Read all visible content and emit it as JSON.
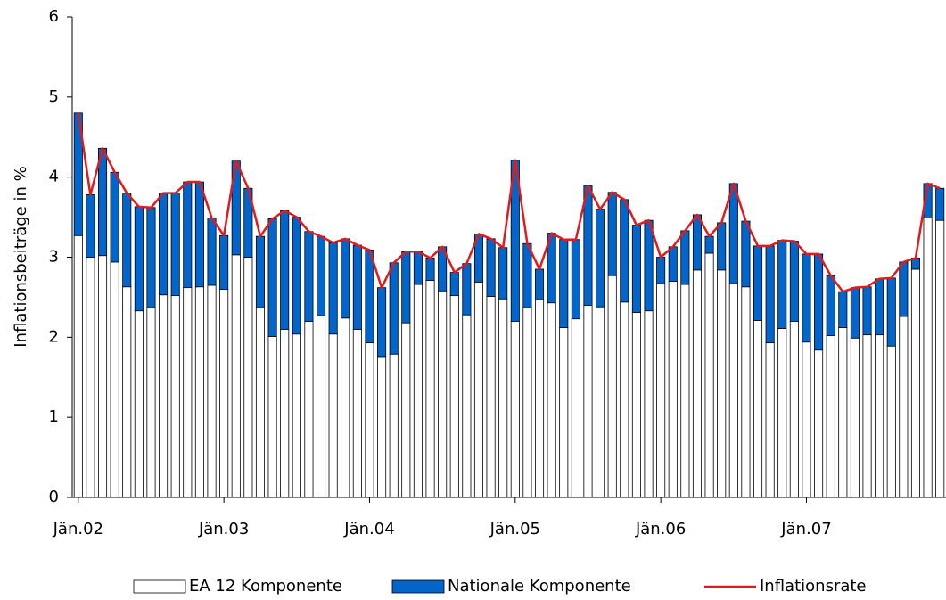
{
  "chart_data": {
    "type": "bar",
    "stacked": true,
    "ylabel": "Inflationsbeiträge in %",
    "categories": [
      "Jän.02",
      null,
      null,
      null,
      null,
      null,
      null,
      null,
      null,
      null,
      null,
      null,
      "Jän.03",
      null,
      null,
      null,
      null,
      null,
      null,
      null,
      null,
      null,
      null,
      null,
      "Jän.04",
      null,
      null,
      null,
      null,
      null,
      null,
      null,
      null,
      null,
      null,
      null,
      "Jän.05",
      null,
      null,
      null,
      null,
      null,
      null,
      null,
      null,
      null,
      null,
      null,
      "Jän.06",
      null,
      null,
      null,
      null,
      null,
      null,
      null,
      null,
      null,
      null,
      null,
      "Jän.07",
      null,
      null,
      null,
      null,
      null,
      null,
      null,
      null,
      null,
      null,
      null
    ],
    "ylim": [
      0,
      6
    ],
    "yticks": [
      0,
      1,
      2,
      3,
      4,
      5,
      6
    ],
    "series": [
      {
        "name": "EA 12 Komponente",
        "type": "bar",
        "color": "#ffffff",
        "values": [
          3.27,
          3.0,
          3.02,
          2.94,
          2.63,
          2.33,
          2.37,
          2.53,
          2.52,
          2.62,
          2.63,
          2.65,
          2.6,
          3.03,
          3.0,
          2.37,
          2.01,
          2.1,
          2.04,
          2.2,
          2.27,
          2.04,
          2.24,
          2.1,
          1.93,
          1.76,
          1.79,
          2.18,
          2.66,
          2.71,
          2.58,
          2.52,
          2.28,
          2.69,
          2.51,
          2.48,
          2.2,
          2.37,
          2.47,
          2.43,
          2.12,
          2.23,
          2.4,
          2.38,
          2.77,
          2.44,
          2.31,
          2.33,
          2.67,
          2.7,
          2.66,
          2.84,
          3.05,
          2.84,
          2.67,
          2.63,
          2.21,
          1.93,
          2.11,
          2.2,
          1.94,
          1.84,
          2.02,
          2.12,
          1.99,
          2.03,
          2.03,
          1.89,
          2.26,
          2.85,
          3.49,
          3.46
        ]
      },
      {
        "name": "Nationale Komponente",
        "type": "bar",
        "color": "#0066cc",
        "values": [
          1.53,
          0.78,
          1.34,
          1.12,
          1.17,
          1.3,
          1.25,
          1.27,
          1.28,
          1.32,
          1.31,
          0.84,
          0.67,
          1.17,
          0.86,
          0.89,
          1.47,
          1.48,
          1.46,
          1.12,
          0.99,
          1.14,
          0.99,
          1.05,
          1.16,
          0.86,
          1.14,
          0.89,
          0.41,
          0.28,
          0.55,
          0.29,
          0.64,
          0.6,
          0.72,
          0.64,
          2.01,
          0.8,
          0.38,
          0.87,
          1.1,
          0.99,
          1.49,
          1.22,
          1.04,
          1.28,
          1.09,
          1.13,
          0.33,
          0.43,
          0.67,
          0.69,
          0.21,
          0.59,
          1.25,
          0.82,
          0.93,
          1.21,
          1.1,
          1.0,
          1.1,
          1.2,
          0.75,
          0.45,
          0.63,
          0.6,
          0.7,
          0.85,
          0.68,
          0.14,
          0.43,
          0.4
        ]
      },
      {
        "name": "Inflationsrate",
        "type": "line",
        "color": "#e31a1c",
        "values": [
          4.8,
          3.78,
          4.36,
          4.06,
          3.8,
          3.63,
          3.62,
          3.8,
          3.8,
          3.94,
          3.94,
          3.49,
          3.27,
          4.2,
          3.86,
          3.26,
          3.48,
          3.58,
          3.5,
          3.32,
          3.26,
          3.18,
          3.23,
          3.15,
          3.09,
          2.62,
          2.93,
          3.07,
          3.07,
          2.99,
          3.13,
          2.81,
          2.92,
          3.29,
          3.23,
          3.12,
          4.21,
          3.17,
          2.85,
          3.3,
          3.22,
          3.22,
          3.89,
          3.6,
          3.81,
          3.72,
          3.4,
          3.46,
          3.0,
          3.13,
          3.33,
          3.53,
          3.26,
          3.43,
          3.92,
          3.45,
          3.14,
          3.14,
          3.21,
          3.2,
          3.04,
          3.04,
          2.77,
          2.57,
          2.62,
          2.63,
          2.73,
          2.74,
          2.94,
          2.99,
          3.92,
          3.86
        ]
      }
    ]
  }
}
